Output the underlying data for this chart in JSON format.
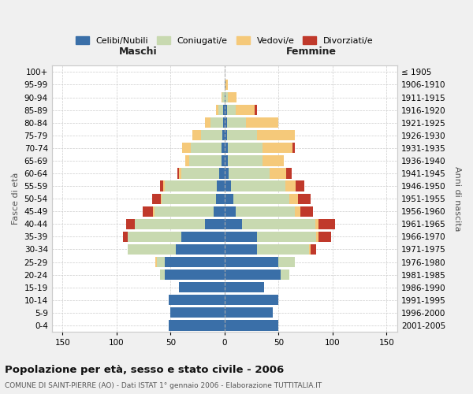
{
  "age_groups": [
    "0-4",
    "5-9",
    "10-14",
    "15-19",
    "20-24",
    "25-29",
    "30-34",
    "35-39",
    "40-44",
    "45-49",
    "50-54",
    "55-59",
    "60-64",
    "65-69",
    "70-74",
    "75-79",
    "80-84",
    "85-89",
    "90-94",
    "95-99",
    "100+"
  ],
  "birth_years": [
    "2001-2005",
    "1996-2000",
    "1991-1995",
    "1986-1990",
    "1981-1985",
    "1976-1980",
    "1971-1975",
    "1966-1970",
    "1961-1965",
    "1956-1960",
    "1951-1955",
    "1946-1950",
    "1941-1945",
    "1936-1940",
    "1931-1935",
    "1926-1930",
    "1921-1925",
    "1916-1920",
    "1911-1915",
    "1906-1910",
    "≤ 1905"
  ],
  "maschi": {
    "celibi": [
      52,
      50,
      52,
      42,
      55,
      55,
      45,
      40,
      18,
      10,
      8,
      7,
      5,
      3,
      3,
      2,
      1,
      1,
      0,
      0,
      0
    ],
    "coniugati": [
      0,
      0,
      0,
      0,
      5,
      8,
      45,
      50,
      65,
      55,
      50,
      48,
      35,
      30,
      28,
      20,
      12,
      5,
      2,
      0,
      0
    ],
    "vedovi": [
      0,
      0,
      0,
      0,
      0,
      1,
      0,
      0,
      0,
      1,
      1,
      2,
      2,
      3,
      8,
      8,
      5,
      2,
      1,
      0,
      0
    ],
    "divorziati": [
      0,
      0,
      0,
      0,
      0,
      0,
      0,
      4,
      8,
      10,
      8,
      3,
      2,
      0,
      0,
      0,
      0,
      0,
      0,
      0,
      0
    ]
  },
  "femmine": {
    "nubili": [
      50,
      45,
      50,
      37,
      52,
      50,
      30,
      30,
      16,
      10,
      8,
      6,
      4,
      3,
      3,
      2,
      2,
      2,
      1,
      1,
      0
    ],
    "coniugate": [
      0,
      0,
      0,
      0,
      8,
      15,
      48,
      55,
      68,
      55,
      52,
      50,
      38,
      32,
      32,
      28,
      18,
      8,
      2,
      0,
      0
    ],
    "vedove": [
      0,
      0,
      0,
      0,
      0,
      0,
      2,
      2,
      3,
      5,
      8,
      10,
      15,
      20,
      28,
      35,
      30,
      18,
      8,
      2,
      0
    ],
    "divorziate": [
      0,
      0,
      0,
      0,
      0,
      0,
      5,
      12,
      15,
      12,
      12,
      8,
      5,
      0,
      2,
      0,
      0,
      2,
      0,
      0,
      0
    ]
  },
  "colors": {
    "celibi": "#3a6fa8",
    "coniugati": "#c8d9b0",
    "vedovi": "#f5c97a",
    "divorziati": "#c0392b"
  },
  "xlim": 160,
  "title": "Popolazione per età, sesso e stato civile - 2006",
  "subtitle": "COMUNE DI SAINT-PIERRE (AO) - Dati ISTAT 1° gennaio 2006 - Elaborazione TUTTITALIA.IT",
  "ylabel_left": "Fasce di età",
  "ylabel_right": "Anni di nascita",
  "xlabel_maschi": "Maschi",
  "xlabel_femmine": "Femmine",
  "legend_labels": [
    "Celibi/Nubili",
    "Coniugati/e",
    "Vedovi/e",
    "Divorziati/e"
  ],
  "bg_color": "#f0f0f0",
  "plot_bg": "#ffffff",
  "grid_color": "#cccccc",
  "xticks": [
    150,
    100,
    50,
    0,
    50,
    100,
    150
  ]
}
